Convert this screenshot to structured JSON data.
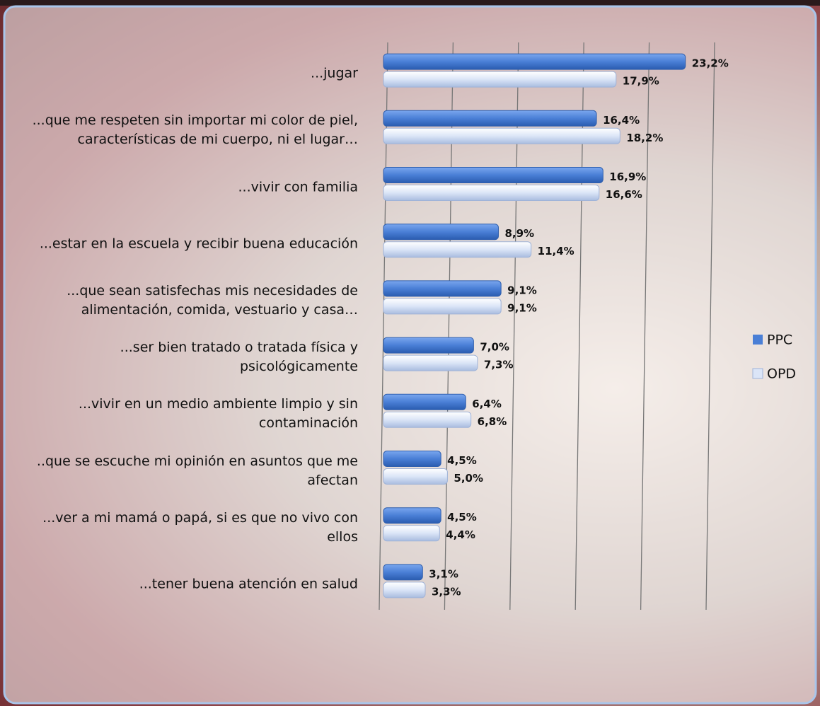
{
  "chart_data": {
    "type": "bar",
    "orientation": "horizontal",
    "categories": [
      "...jugar",
      "...que me respeten sin importar mi color de piel, características de mi cuerpo, ni el lugar…",
      "...vivir con familia",
      "...estar en la escuela y recibir buena educación",
      "...que sean satisfechas mis necesidades de alimentación, comida, vestuario y casa…",
      "...ser bien tratado o tratada física y psicológicamente",
      "...vivir en un medio ambiente limpio y sin contaminación",
      "..que se escuche mi opinión en asuntos que me afectan",
      "...ver a mi mamá o papá, si es que no vivo con ellos",
      "...tener buena atención en salud"
    ],
    "series": [
      {
        "name": "PPC",
        "color": "#4a7fd6",
        "values": [
          23.2,
          16.4,
          16.9,
          8.9,
          9.1,
          7.0,
          6.4,
          4.5,
          4.5,
          3.1
        ],
        "value_labels": [
          "23,2%",
          "16,4%",
          "16,9%",
          "8,9%",
          "9,1%",
          "7,0%",
          "6,4%",
          "4,5%",
          "4,5%",
          "3,1%"
        ]
      },
      {
        "name": "OPD",
        "color": "#dbe5f7",
        "values": [
          17.9,
          18.2,
          16.6,
          11.4,
          9.1,
          7.3,
          6.8,
          5.0,
          4.4,
          3.3
        ],
        "value_labels": [
          "17,9%",
          "18,2%",
          "16,6%",
          "11,4%",
          "9,1%",
          "7,3%",
          "6,8%",
          "5,0%",
          "4,4%",
          "3,3%"
        ]
      }
    ],
    "xlim": [
      0,
      25
    ],
    "xticks": [
      0,
      5,
      10,
      15,
      20,
      25
    ],
    "grid": true,
    "legend": "right"
  }
}
